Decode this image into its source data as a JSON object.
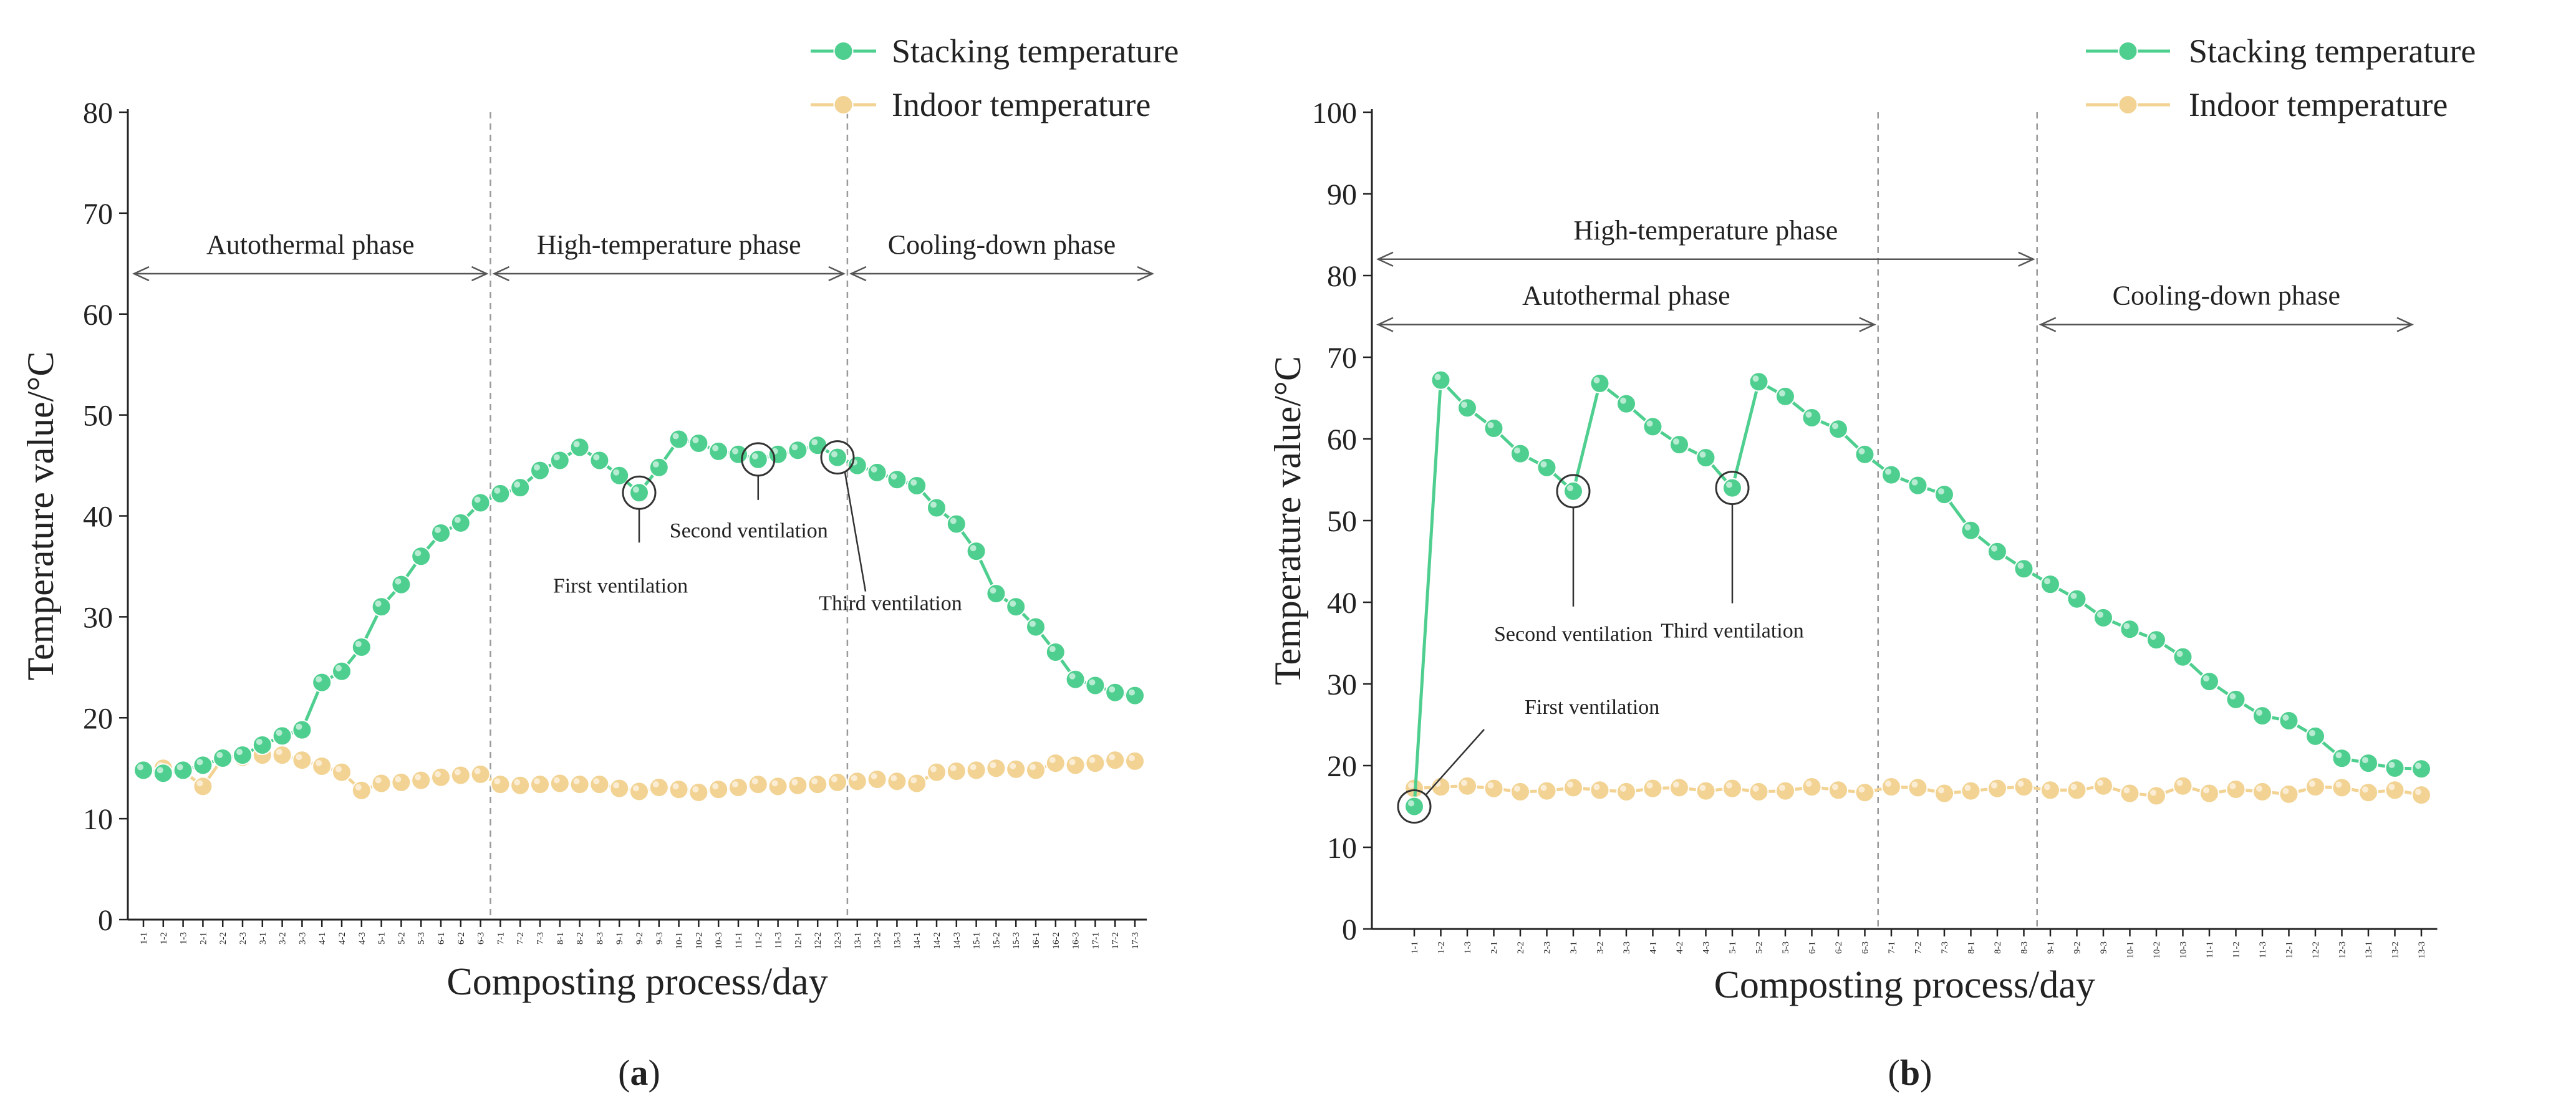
{
  "chart_data": [
    {
      "panel": "a",
      "type": "line",
      "caption": "a",
      "xlabel": "Composting process/day",
      "ylabel": "Temperature value/°C",
      "ylim": [
        0,
        80
      ],
      "yticks": [
        0,
        10,
        20,
        30,
        40,
        50,
        60,
        70,
        80
      ],
      "categories": [
        "1-1",
        "1-2",
        "1-3",
        "2-1",
        "2-2",
        "2-3",
        "3-1",
        "3-2",
        "3-3",
        "4-1",
        "4-2",
        "4-3",
        "5-1",
        "5-2",
        "5-3",
        "6-1",
        "6-2",
        "6-3",
        "7-1",
        "7-2",
        "7-3",
        "8-1",
        "8-2",
        "8-3",
        "9-1",
        "9-2",
        "9-3",
        "10-1",
        "10-2",
        "10-3",
        "11-1",
        "11-2",
        "11-3",
        "12-1",
        "12-2",
        "12-3",
        "13-1",
        "13-2",
        "13-3",
        "14-1",
        "14-2",
        "14-3",
        "15-1",
        "15-2",
        "15-3",
        "16-1",
        "16-2",
        "16-3",
        "17-1",
        "17-2",
        "17-3"
      ],
      "series": [
        {
          "name": "Stacking temperature",
          "color": "#4fcf8f",
          "values": [
            14.8,
            14.5,
            14.8,
            15.3,
            16.0,
            16.3,
            17.3,
            18.2,
            18.8,
            23.5,
            24.6,
            27.0,
            31.0,
            33.2,
            36.0,
            38.3,
            39.3,
            41.3,
            42.2,
            42.8,
            44.5,
            45.5,
            46.8,
            45.5,
            44.0,
            42.3,
            44.8,
            47.6,
            47.2,
            46.4,
            46.1,
            45.6,
            46.1,
            46.5,
            47.0,
            45.8,
            45.0,
            44.3,
            43.6,
            43.0,
            40.8,
            39.2,
            36.5,
            32.3,
            31.0,
            29.0,
            26.5,
            23.8,
            23.2,
            22.5,
            22.2
          ]
        },
        {
          "name": "Indoor temperature",
          "color": "#f2d393",
          "values": [
            14.8,
            15.0,
            14.7,
            13.2,
            16.0,
            16.1,
            16.3,
            16.3,
            15.8,
            15.2,
            14.6,
            12.8,
            13.5,
            13.6,
            13.8,
            14.1,
            14.3,
            14.4,
            13.4,
            13.3,
            13.4,
            13.5,
            13.4,
            13.4,
            13.0,
            12.7,
            13.1,
            12.9,
            12.6,
            12.9,
            13.1,
            13.4,
            13.2,
            13.3,
            13.4,
            13.6,
            13.7,
            13.9,
            13.7,
            13.5,
            14.6,
            14.7,
            14.8,
            15.0,
            14.9,
            14.8,
            15.5,
            15.3,
            15.5,
            15.8,
            15.7
          ]
        }
      ],
      "phase_dividers_after": [
        "6-3",
        "12-3"
      ],
      "phases": [
        {
          "label": "Autothermal phase",
          "from": "1-1",
          "to": "6-3",
          "y": 64
        },
        {
          "label": "High-temperature phase",
          "from": "6-3",
          "to": "12-3",
          "y": 64
        },
        {
          "label": "Cooling-down phase",
          "from": "12-3",
          "to": "17-3",
          "y": 64
        }
      ],
      "annotations": [
        {
          "label": "First ventilation",
          "at": "9-2"
        },
        {
          "label": "Second ventilation",
          "at": "11-2"
        },
        {
          "label": "Third ventilation",
          "at": "12-3"
        }
      ],
      "legend": "top-right"
    },
    {
      "panel": "b",
      "type": "line",
      "caption": "b",
      "xlabel": "Composting process/day",
      "ylabel": "Temperature value/°C",
      "ylim": [
        0,
        100
      ],
      "yticks": [
        0,
        10,
        20,
        30,
        40,
        50,
        60,
        70,
        80,
        90,
        100
      ],
      "categories": [
        "1-1",
        "1-2",
        "1-3",
        "2-1",
        "2-2",
        "2-3",
        "3-1",
        "3-2",
        "3-3",
        "4-1",
        "4-2",
        "4-3",
        "5-1",
        "5-2",
        "5-3",
        "6-1",
        "6-2",
        "6-3",
        "7-1",
        "7-2",
        "7-3",
        "8-1",
        "8-2",
        "8-3",
        "9-1",
        "9-2",
        "9-3",
        "10-1",
        "10-2",
        "10-3",
        "11-1",
        "11-2",
        "11-3",
        "12-1",
        "12-2",
        "12-3",
        "13-1",
        "13-2",
        "13-3"
      ],
      "series": [
        {
          "name": "Stacking temperature",
          "color": "#4fcf8f",
          "values": [
            15.0,
            67.2,
            63.8,
            61.3,
            58.2,
            56.5,
            53.6,
            66.8,
            64.3,
            61.5,
            59.3,
            57.7,
            54.0,
            67.0,
            65.2,
            62.6,
            61.2,
            58.1,
            55.6,
            54.3,
            53.2,
            48.8,
            46.2,
            44.1,
            42.2,
            40.4,
            38.1,
            36.7,
            35.4,
            33.3,
            30.3,
            28.1,
            26.1,
            25.5,
            23.6,
            20.9,
            20.3,
            19.7,
            19.6
          ]
        },
        {
          "name": "Indoor temperature",
          "color": "#f2d393",
          "values": [
            17.2,
            17.4,
            17.5,
            17.2,
            16.8,
            16.9,
            17.3,
            17.0,
            16.8,
            17.2,
            17.3,
            16.9,
            17.2,
            16.8,
            16.9,
            17.4,
            17.0,
            16.7,
            17.4,
            17.3,
            16.6,
            16.9,
            17.2,
            17.4,
            17.0,
            17.0,
            17.5,
            16.6,
            16.3,
            17.5,
            16.6,
            17.1,
            16.8,
            16.5,
            17.4,
            17.3,
            16.7,
            17.0,
            16.4
          ]
        }
      ],
      "phase_dividers_after": [
        "6-3",
        "8-3"
      ],
      "phases": [
        {
          "label": "High-temperature phase",
          "from": "1-1",
          "to": "8-3",
          "y": 82
        },
        {
          "label": "Autothermal phase",
          "from": "1-1",
          "to": "6-3",
          "y": 74
        },
        {
          "label": "Cooling-down phase",
          "from": "8-3",
          "to": "13-3",
          "y": 74
        }
      ],
      "annotations": [
        {
          "label": "First ventilation",
          "at": "1-1"
        },
        {
          "label": "Second ventilation",
          "at": "3-1"
        },
        {
          "label": "Third ventilation",
          "at": "5-1"
        }
      ],
      "legend": "top-right"
    }
  ]
}
